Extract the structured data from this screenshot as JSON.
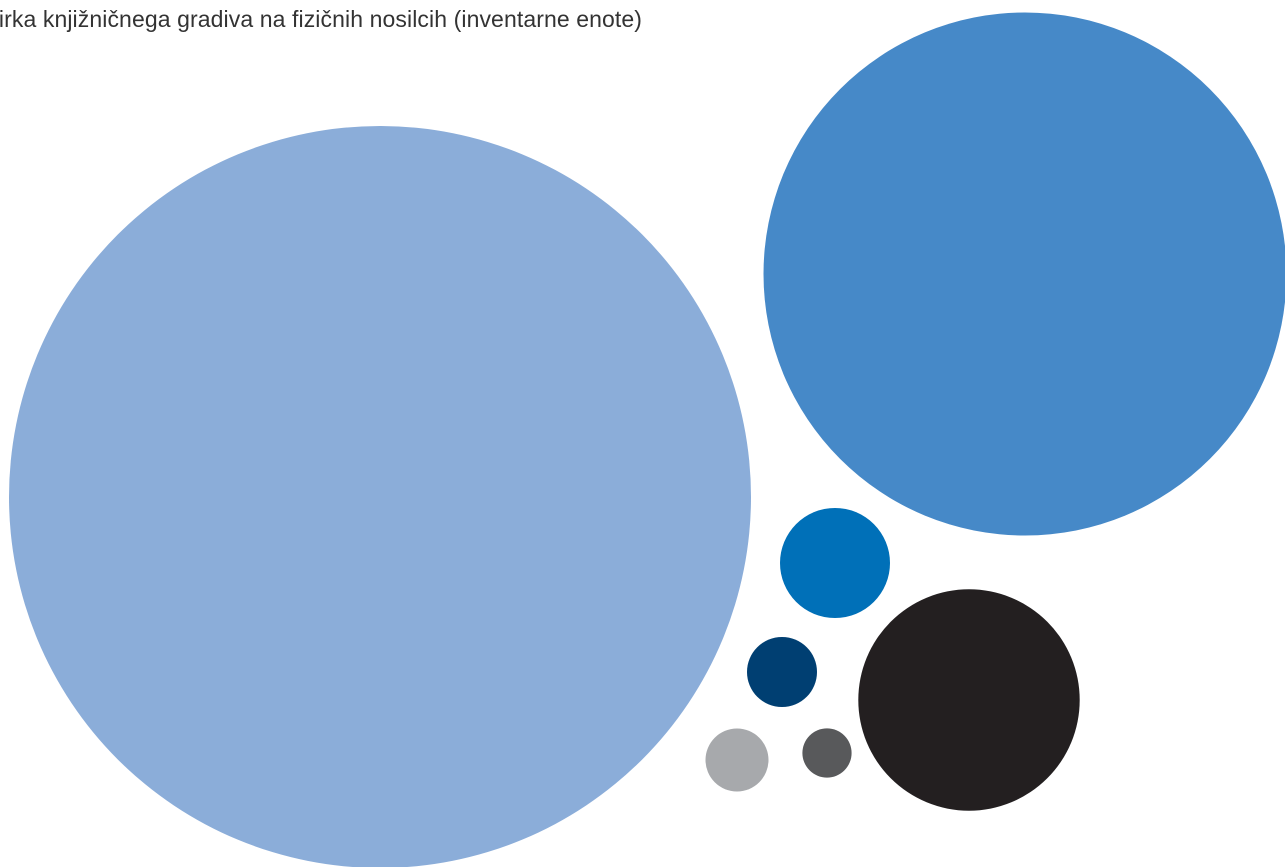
{
  "chart_data": {
    "type": "bubble",
    "title": "birka knjižničnega gradiva na fizičnih nosilcih (inventarne enote)",
    "legend": "none",
    "grid": false,
    "series": [
      {
        "value": 100,
        "color": "#8badd9"
      },
      {
        "value": 49.7,
        "color": "#4689c8"
      },
      {
        "value": 8.9,
        "color": "#231f20"
      },
      {
        "value": 2.2,
        "color": "#0070b8"
      },
      {
        "value": 0.89,
        "color": "#003f72"
      },
      {
        "value": 0.72,
        "color": "#a7a9ac"
      },
      {
        "value": 0.44,
        "color": "#58595b"
      }
    ]
  }
}
